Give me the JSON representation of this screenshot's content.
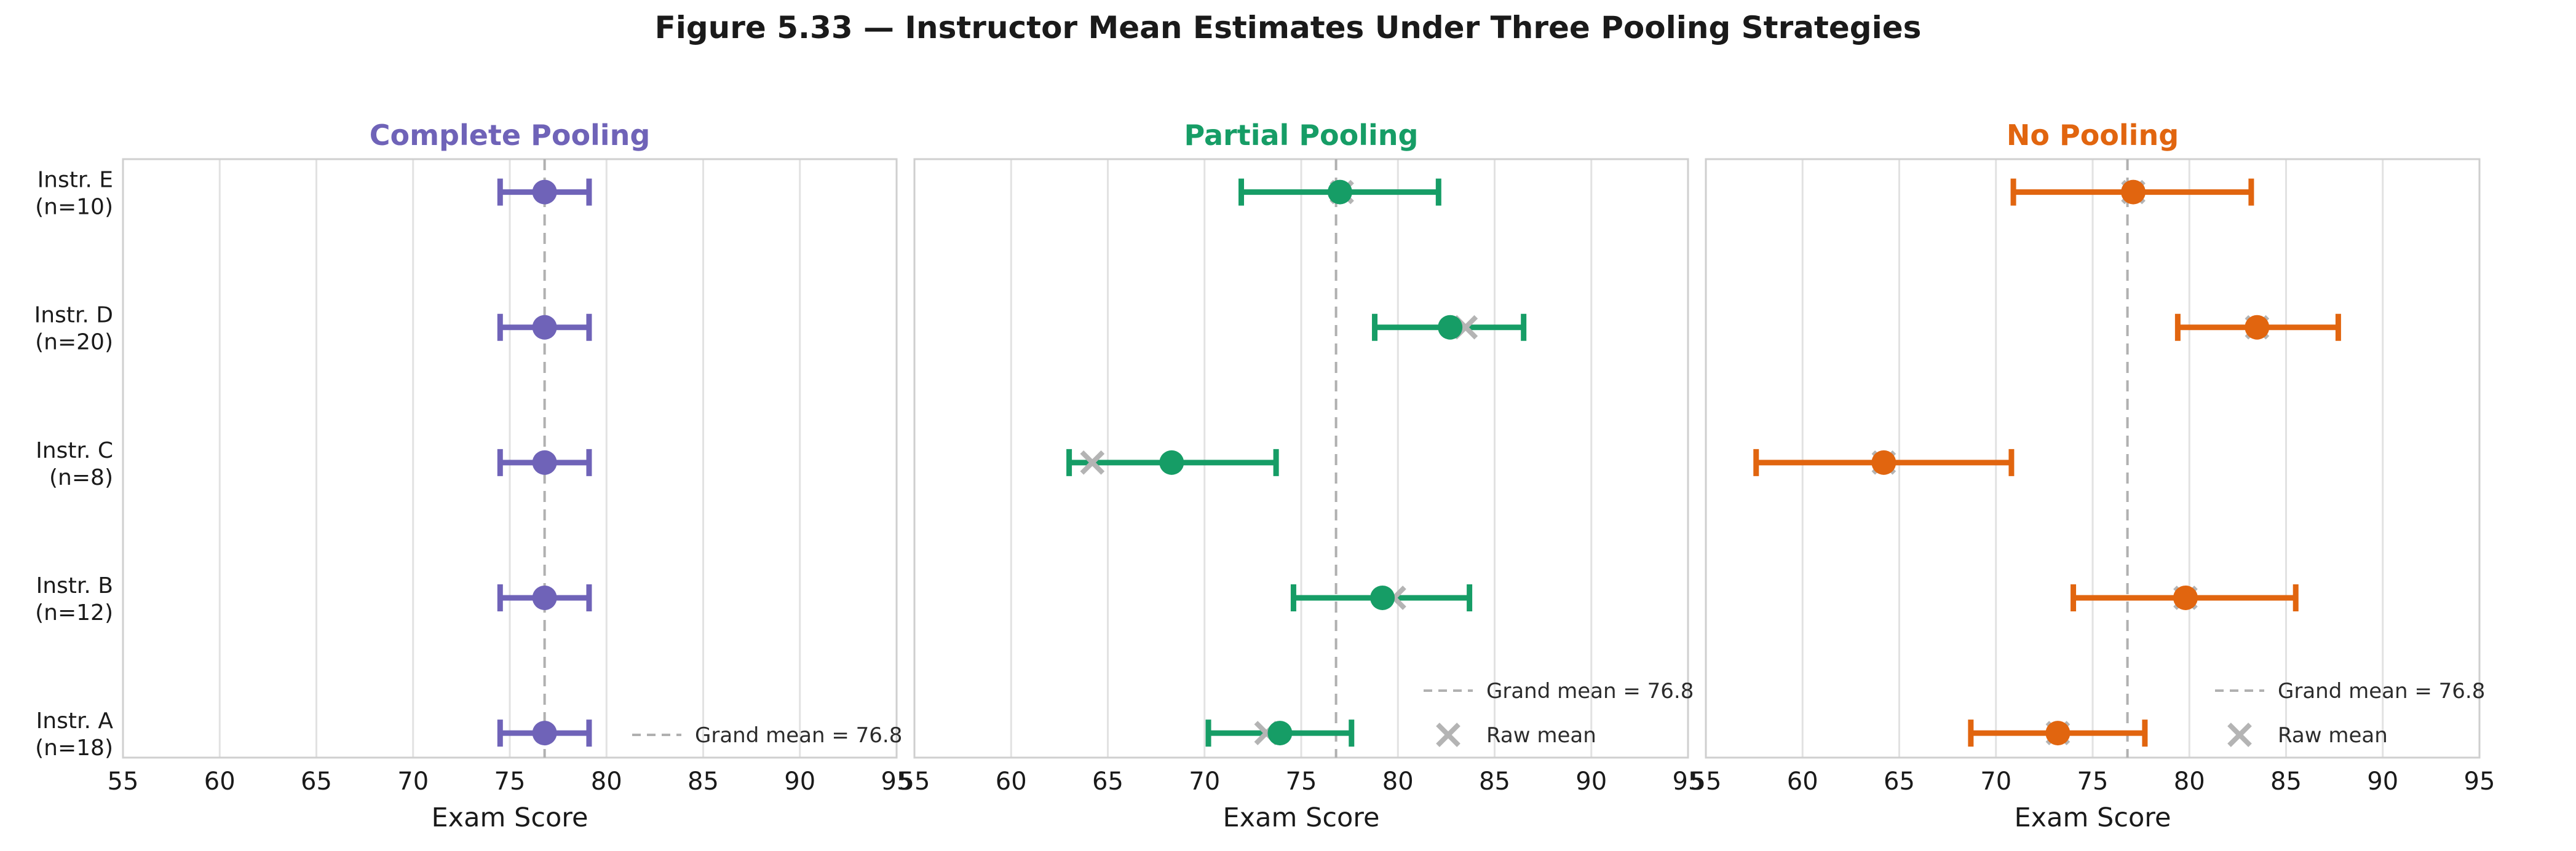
{
  "chart_data": {
    "type": "scatter",
    "title": "Figure 5.33 — Instructor Mean Estimates Under Three Pooling Strategies",
    "xlabel": "Exam Score",
    "xlim": [
      55,
      95
    ],
    "xticks": [
      55,
      60,
      65,
      70,
      75,
      80,
      85,
      90,
      95
    ],
    "grand_mean": 76.8,
    "legend": {
      "grand_mean_label": "Grand mean = 76.8",
      "raw_mean_label": "Raw mean"
    },
    "rows": [
      {
        "instructor": "Instr. E",
        "n_label": "(n=10)",
        "n": 10
      },
      {
        "instructor": "Instr. D",
        "n_label": "(n=20)",
        "n": 20
      },
      {
        "instructor": "Instr. C",
        "n_label": "(n=8)",
        "n": 8
      },
      {
        "instructor": "Instr. B",
        "n_label": "(n=12)",
        "n": 12
      },
      {
        "instructor": "Instr. A",
        "n_label": "(n=18)",
        "n": 18
      }
    ],
    "panels": [
      {
        "title": "Complete Pooling",
        "color": "#6f63b8",
        "show_raw": false,
        "estimates": [
          76.8,
          76.8,
          76.8,
          76.8,
          76.8
        ],
        "ci_low": [
          74.5,
          74.5,
          74.5,
          74.5,
          74.5
        ],
        "ci_high": [
          79.1,
          79.1,
          79.1,
          79.1,
          79.1
        ],
        "raw_means": [
          null,
          null,
          null,
          null,
          null
        ]
      },
      {
        "title": "Partial Pooling",
        "color": "#169d66",
        "show_raw": true,
        "estimates": [
          77.0,
          82.7,
          68.3,
          79.2,
          73.9
        ],
        "ci_low": [
          71.9,
          78.8,
          63.0,
          74.6,
          70.2
        ],
        "ci_high": [
          82.1,
          86.5,
          73.7,
          83.7,
          77.6
        ],
        "raw_means": [
          77.1,
          83.5,
          64.2,
          79.8,
          73.2
        ]
      },
      {
        "title": "No Pooling",
        "color": "#e1650f",
        "show_raw": true,
        "estimates": [
          77.1,
          83.5,
          64.2,
          79.8,
          73.2
        ],
        "ci_low": [
          70.9,
          79.4,
          57.6,
          74.0,
          68.7
        ],
        "ci_high": [
          83.2,
          87.7,
          70.8,
          85.5,
          77.7
        ],
        "raw_means": [
          77.1,
          83.5,
          64.2,
          79.8,
          73.2
        ]
      }
    ],
    "styles": {
      "grid_color": "#e2e2e2",
      "spine_color": "#cfcfcf",
      "dashed_color": "#b0b0b0",
      "raw_marker_color": "#b4b4b4",
      "text_color": "#1a1a1a",
      "legend_text_color": "#2b2b2b"
    }
  }
}
